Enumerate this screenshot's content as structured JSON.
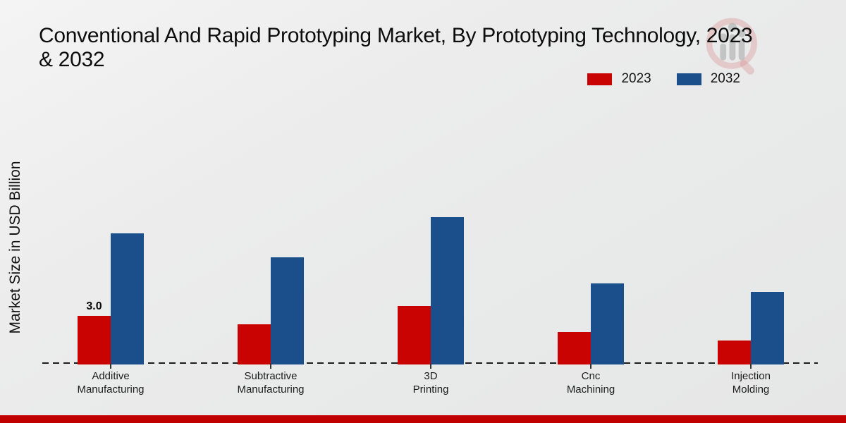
{
  "page": {
    "footer_color": "#c00000"
  },
  "chart_data": {
    "type": "bar",
    "title": "Conventional And Rapid Prototyping Market, By Prototyping Technology, 2023\n& 2032",
    "ylabel": "Market Size in USD Billion",
    "xlabel": "",
    "categories": [
      "Additive\nManufacturing",
      "Subtractive\nManufacturing",
      "3D\nPrinting",
      "Cnc\nMachining",
      "Injection\nMolding"
    ],
    "series": [
      {
        "name": "2023",
        "color": "#c90202",
        "values": [
          3.0,
          2.5,
          3.6,
          2.0,
          1.5
        ]
      },
      {
        "name": "2032",
        "color": "#1b4f8c",
        "values": [
          8.1,
          6.6,
          9.1,
          5.0,
          4.5
        ]
      }
    ],
    "value_labels": [
      {
        "series_index": 0,
        "category_index": 0,
        "text": "3.0"
      }
    ],
    "ylim": [
      0,
      10
    ],
    "grid": false,
    "legend_position": "top-right",
    "baseline_style": "dashed"
  }
}
